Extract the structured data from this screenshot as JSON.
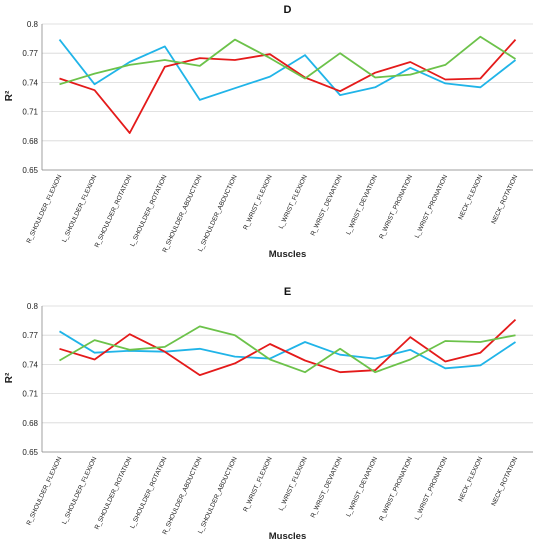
{
  "colors": {
    "blue": "#20b4e8",
    "red": "#e41a1a",
    "green": "#6cc24a"
  },
  "chart_data": [
    {
      "type": "line",
      "title": "D",
      "xlabel": "Muscles",
      "ylabel": "R²",
      "ylim": [
        0.65,
        0.8
      ],
      "yticks": [
        "0.65",
        "0.68",
        "0.71",
        "0.74",
        "0.77",
        "0.8"
      ],
      "grid": true,
      "categories": [
        "R_SHOULDER_FLEXION",
        "L_SHOULDER_FLEXION",
        "R_SHOULDER_ROTATION",
        "L_SHOULDER_ROTATION",
        "R_SHOULDER_ABDUCTION",
        "L_SHOULDER_ABDUCTION",
        "R_WRIST_FLEXION",
        "L_WRIST_FLEXION",
        "R_WRIST_DEVIATION",
        "L_WRIST_DEVIATION",
        "R_WRIST_PRONATION",
        "L_WRIST_PRONATION",
        "NECK_FLEXION",
        "NECK_ROTATION"
      ],
      "series": [
        {
          "color": "blue",
          "values": [
            0.784,
            0.738,
            0.761,
            0.777,
            0.722,
            0.734,
            0.746,
            0.768,
            0.727,
            0.735,
            0.755,
            0.739,
            0.735,
            0.763
          ]
        },
        {
          "color": "red",
          "values": [
            0.744,
            0.732,
            0.688,
            0.756,
            0.765,
            0.763,
            0.769,
            0.745,
            0.731,
            0.75,
            0.761,
            0.743,
            0.744,
            0.784
          ]
        },
        {
          "color": "green",
          "values": [
            0.738,
            0.749,
            0.758,
            0.763,
            0.757,
            0.784,
            0.765,
            0.744,
            0.77,
            0.745,
            0.748,
            0.758,
            0.787,
            0.764
          ]
        }
      ]
    },
    {
      "type": "line",
      "title": "E",
      "xlabel": "Muscles",
      "ylabel": "R²",
      "ylim": [
        0.65,
        0.8
      ],
      "yticks": [
        "0.65",
        "0.68",
        "0.71",
        "0.74",
        "0.77",
        "0.8"
      ],
      "grid": true,
      "categories": [
        "R_SHOULDER_FLEXION",
        "L_SHOULDER_FLEXION",
        "R_SHOULDER_ROTATION",
        "L_SHOULDER_ROTATION",
        "R_SHOULDER_ABDUCTION",
        "L_SHOULDER_ABDUCTION",
        "R_WRIST_FLEXION",
        "L_WRIST_FLEXION",
        "R_WRIST_DEVIATION",
        "L_WRIST_DEVIATION",
        "R_WRIST_PRONATION",
        "L_WRIST_PRONATION",
        "NECK_FLEXION",
        "NECK_ROTATION"
      ],
      "series": [
        {
          "color": "blue",
          "values": [
            0.774,
            0.752,
            0.754,
            0.753,
            0.756,
            0.748,
            0.746,
            0.763,
            0.75,
            0.746,
            0.755,
            0.736,
            0.739,
            0.763
          ]
        },
        {
          "color": "red",
          "values": [
            0.756,
            0.745,
            0.771,
            0.753,
            0.729,
            0.741,
            0.761,
            0.744,
            0.732,
            0.734,
            0.768,
            0.743,
            0.752,
            0.786
          ]
        },
        {
          "color": "green",
          "values": [
            0.744,
            0.765,
            0.755,
            0.758,
            0.779,
            0.77,
            0.745,
            0.732,
            0.756,
            0.732,
            0.745,
            0.764,
            0.763,
            0.77
          ]
        }
      ]
    }
  ]
}
